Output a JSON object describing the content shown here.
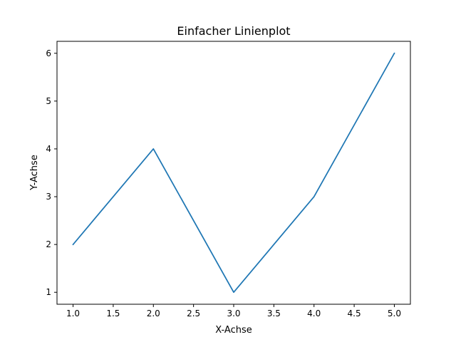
{
  "chart_data": {
    "type": "line",
    "title": "Einfacher Linienplot",
    "xlabel": "X-Achse",
    "ylabel": "Y-Achse",
    "x": [
      1,
      2,
      3,
      4,
      5
    ],
    "series": [
      {
        "values": [
          2,
          4,
          1,
          3,
          6
        ],
        "color": "#1f77b4"
      }
    ],
    "xlim": [
      0.8,
      5.2
    ],
    "ylim": [
      0.75,
      6.25
    ],
    "xticks": [
      1.0,
      1.5,
      2.0,
      2.5,
      3.0,
      3.5,
      4.0,
      4.5,
      5.0
    ],
    "xtick_labels": [
      "1.0",
      "1.5",
      "2.0",
      "2.5",
      "3.0",
      "3.5",
      "4.0",
      "4.5",
      "5.0"
    ],
    "yticks": [
      1,
      2,
      3,
      4,
      5,
      6
    ],
    "ytick_labels": [
      "1",
      "2",
      "3",
      "4",
      "5",
      "6"
    ],
    "grid": false,
    "legend": "none"
  }
}
